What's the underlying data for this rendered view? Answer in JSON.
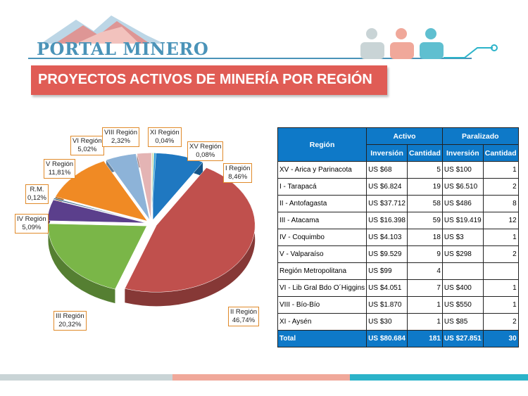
{
  "logo": {
    "text": "PORTAL MINERO"
  },
  "title": "PROYECTOS ACTIVOS DE MINERÍA POR REGIÓN",
  "colors": {
    "title_bar": "#e05c55",
    "table_header": "#0e79c8",
    "brand_blue": "#4a93b8",
    "strip_gray": "#c9d4d6",
    "strip_red": "#f0a89a",
    "strip_teal": "#2bb3c9"
  },
  "chart_data": {
    "type": "pie",
    "title": "",
    "slices": [
      {
        "label": "I Región",
        "pct": "8,46%",
        "value": 8.46,
        "color": "#1f78c1"
      },
      {
        "label": "II Región",
        "pct": "46,74%",
        "value": 46.74,
        "color": "#c0504d"
      },
      {
        "label": "III Región",
        "pct": "20,32%",
        "value": 20.32,
        "color": "#7ab648"
      },
      {
        "label": "IV Región",
        "pct": "5,09%",
        "value": 5.09,
        "color": "#5b3f8c"
      },
      {
        "label": "R.M.",
        "pct": "0,12%",
        "value": 0.12,
        "color": "#3c6e8f"
      },
      {
        "label": "V Región",
        "pct": "11,81%",
        "value": 11.81,
        "color": "#f08a24"
      },
      {
        "label": "VI Región",
        "pct": "5,02%",
        "value": 5.02,
        "color": "#8db3d8"
      },
      {
        "label": "VIII Región",
        "pct": "2,32%",
        "value": 2.32,
        "color": "#e4b4b4"
      },
      {
        "label": "XI Región",
        "pct": "0,04%",
        "value": 0.04,
        "color": "#d6e4b8"
      },
      {
        "label": "XV Región",
        "pct": "0,08%",
        "value": 0.08,
        "color": "#2a9ed8"
      }
    ]
  },
  "table": {
    "header": {
      "region": "Región",
      "activo": "Activo",
      "paralizado": "Paralizado",
      "inversion": "Inversión",
      "cantidad": "Cantidad"
    },
    "rows": [
      {
        "region": "XV - Arica y Parinacota",
        "act_inv": "US $68",
        "act_cant": "5",
        "par_inv": "US $100",
        "par_cant": "1"
      },
      {
        "region": "I - Tarapacá",
        "act_inv": "US $6.824",
        "act_cant": "19",
        "par_inv": "US $6.510",
        "par_cant": "2"
      },
      {
        "region": "II - Antofagasta",
        "act_inv": "US $37.712",
        "act_cant": "58",
        "par_inv": "US $486",
        "par_cant": "8"
      },
      {
        "region": "III - Atacama",
        "act_inv": "US $16.398",
        "act_cant": "59",
        "par_inv": "US $19.419",
        "par_cant": "12"
      },
      {
        "region": "IV - Coquimbo",
        "act_inv": "US $4.103",
        "act_cant": "18",
        "par_inv": "US $3",
        "par_cant": "1"
      },
      {
        "region": "V - Valparaíso",
        "act_inv": "US $9.529",
        "act_cant": "9",
        "par_inv": "US $298",
        "par_cant": "2"
      },
      {
        "region": "Región Metropolitana",
        "act_inv": "US $99",
        "act_cant": "4",
        "par_inv": "",
        "par_cant": ""
      },
      {
        "region": "VI - Lib Gral Bdo O´Higgins",
        "act_inv": "US $4.051",
        "act_cant": "7",
        "par_inv": "US $400",
        "par_cant": "1"
      },
      {
        "region": "VIII - Bío-Bío",
        "act_inv": "US $1.870",
        "act_cant": "1",
        "par_inv": "US $550",
        "par_cant": "1"
      },
      {
        "region": "XI - Aysén",
        "act_inv": "US $30",
        "act_cant": "1",
        "par_inv": "US $85",
        "par_cant": "2"
      }
    ],
    "total": {
      "region": "Total",
      "act_inv": "US $80.684",
      "act_cant": "181",
      "par_inv": "US $27.851",
      "par_cant": "30"
    }
  }
}
